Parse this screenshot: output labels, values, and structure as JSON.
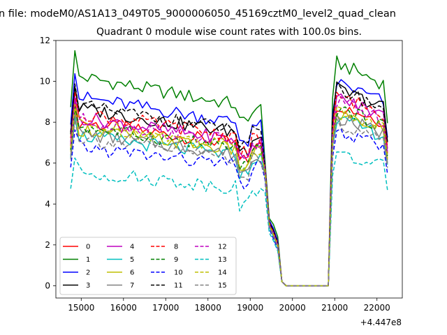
{
  "figure": {
    "suptitle": "n file: modeM0/AS1A13_049T05_9000006050_45169cztM0_level2_quad_clean"
  },
  "chart_data": {
    "type": "line",
    "title": "Quadrant 0 module wise count rates with 100.0s bins.",
    "xlabel": "",
    "ylabel": "",
    "x_offset_label": "+4.447e8",
    "xlim": [
      14400,
      22600
    ],
    "ylim": [
      -0.6,
      12
    ],
    "xticks": [
      15000,
      16000,
      17000,
      18000,
      19000,
      20000,
      21000,
      22000
    ],
    "xtick_labels": [
      "15000",
      "16000",
      "17000",
      "18000",
      "19000",
      "20000",
      "21000",
      "22000"
    ],
    "yticks": [
      0,
      2,
      4,
      6,
      8,
      10,
      12
    ],
    "ytick_labels": [
      "0",
      "2",
      "4",
      "6",
      "8",
      "10",
      "12"
    ],
    "legend_position": "lower-left",
    "legend_columns": 4,
    "x_segments": [
      {
        "start": 14750,
        "end": 19250,
        "step": 100
      },
      {
        "start": 19350,
        "end": 19750,
        "step": 100
      },
      {
        "start": 19850,
        "end": 20850,
        "step": 100
      },
      {
        "start": 20950,
        "end": 22250,
        "step": 100
      }
    ],
    "series": [
      {
        "name": "0",
        "color": "#ff0000",
        "dash": "solid",
        "orbit1": 7.2,
        "dip": [
          5.7,
          3.1,
          2.6,
          2.0,
          0.2
        ],
        "orbit2": 8.3
      },
      {
        "name": "1",
        "color": "#008000",
        "dash": "solid",
        "orbit1": 9.2,
        "dip": [
          6.1,
          3.3,
          3.0,
          2.4,
          0.2
        ],
        "orbit2": 10.2
      },
      {
        "name": "2",
        "color": "#0000ff",
        "dash": "solid",
        "orbit1": 8.3,
        "dip": [
          5.9,
          3.2,
          2.8,
          2.2,
          0.2
        ],
        "orbit2": 9.3
      },
      {
        "name": "3",
        "color": "#000000",
        "dash": "solid",
        "orbit1": 7.8,
        "dip": [
          5.8,
          3.1,
          2.7,
          2.1,
          0.2
        ],
        "orbit2": 9.0
      },
      {
        "name": "4",
        "color": "#bf00bf",
        "dash": "solid",
        "orbit1": 7.4,
        "dip": [
          5.8,
          3.0,
          2.6,
          2.1,
          0.2
        ],
        "orbit2": 8.6
      },
      {
        "name": "5",
        "color": "#00bfbf",
        "dash": "solid",
        "orbit1": 6.6,
        "dip": [
          5.4,
          2.9,
          2.4,
          1.9,
          0.2
        ],
        "orbit2": 7.6
      },
      {
        "name": "6",
        "color": "#bfbf00",
        "dash": "solid",
        "orbit1": 6.9,
        "dip": [
          5.6,
          3.0,
          2.5,
          2.0,
          0.2
        ],
        "orbit2": 7.9
      },
      {
        "name": "7",
        "color": "#808080",
        "dash": "solid",
        "orbit1": 6.7,
        "dip": [
          5.5,
          2.9,
          2.5,
          1.9,
          0.2
        ],
        "orbit2": 7.7
      },
      {
        "name": "8",
        "color": "#ff0000",
        "dash": "dashed",
        "orbit1": 7.6,
        "dip": [
          5.8,
          3.1,
          2.6,
          2.1,
          0.2
        ],
        "orbit2": 8.7
      },
      {
        "name": "9",
        "color": "#008000",
        "dash": "dashed",
        "orbit1": 7.0,
        "dip": [
          5.6,
          3.0,
          2.5,
          2.0,
          0.2
        ],
        "orbit2": 8.1
      },
      {
        "name": "10",
        "color": "#0000ff",
        "dash": "dashed",
        "orbit1": 6.1,
        "dip": [
          5.2,
          2.8,
          2.3,
          1.8,
          0.2
        ],
        "orbit2": 7.0
      },
      {
        "name": "11",
        "color": "#000000",
        "dash": "dashed",
        "orbit1": 7.9,
        "dip": [
          5.9,
          3.1,
          2.7,
          2.1,
          0.2
        ],
        "orbit2": 9.0
      },
      {
        "name": "12",
        "color": "#bf00bf",
        "dash": "dashed",
        "orbit1": 7.3,
        "dip": [
          5.7,
          3.0,
          2.6,
          2.0,
          0.2
        ],
        "orbit2": 8.4
      },
      {
        "name": "13",
        "color": "#00bfbf",
        "dash": "dashed",
        "orbit1": 5.0,
        "dip": [
          4.6,
          2.6,
          2.2,
          1.7,
          0.2
        ],
        "orbit2": 6.0
      },
      {
        "name": "14",
        "color": "#bfbf00",
        "dash": "dashed",
        "orbit1": 7.1,
        "dip": [
          5.7,
          3.0,
          2.5,
          2.0,
          0.2
        ],
        "orbit2": 8.0
      },
      {
        "name": "15",
        "color": "#808080",
        "dash": "dashed",
        "orbit1": 6.5,
        "dip": [
          5.4,
          2.9,
          2.4,
          1.9,
          0.2
        ],
        "orbit2": 7.4
      }
    ]
  }
}
